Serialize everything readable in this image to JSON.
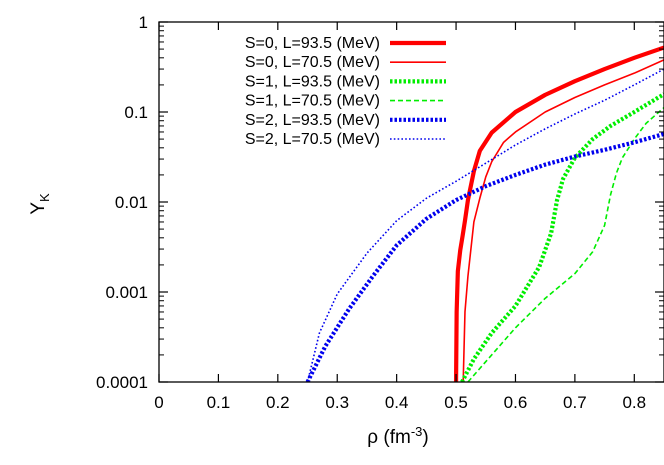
{
  "chart_data": {
    "type": "line",
    "title": "",
    "xlabel": "ρ (fm",
    "xlabel_sup": "-3",
    "xlabel_suffix": ")",
    "ylabel": "Y",
    "ylabel_sub": "K",
    "xlim": [
      0,
      0.85
    ],
    "ylim": [
      0.0001,
      1
    ],
    "yscale": "log",
    "grid": false,
    "legend_position": "top-left",
    "x_ticks": [
      0,
      0.1,
      0.2,
      0.3,
      0.4,
      0.5,
      0.6,
      0.7,
      0.8
    ],
    "x_tick_labels": [
      "0",
      "0.1",
      "0.2",
      "0.3",
      "0.4",
      "0.5",
      "0.6",
      "0.7",
      "0.8"
    ],
    "y_ticks": [
      0.0001,
      0.001,
      0.01,
      0.1,
      1
    ],
    "y_tick_labels": [
      "0.0001",
      "0.001",
      "0.01",
      "0.1",
      "1"
    ],
    "series": [
      {
        "name": "S=0, L=93.5 (MeV)",
        "color": "#ff0000",
        "style": "solid",
        "weight": "thick",
        "points": [
          [
            0.5,
            0.0001
          ],
          [
            0.501,
            0.0006
          ],
          [
            0.503,
            0.0017
          ],
          [
            0.507,
            0.0029
          ],
          [
            0.511,
            0.0042
          ],
          [
            0.515,
            0.0062
          ],
          [
            0.52,
            0.0105
          ],
          [
            0.53,
            0.022
          ],
          [
            0.54,
            0.037
          ],
          [
            0.56,
            0.059
          ],
          [
            0.6,
            0.1
          ],
          [
            0.65,
            0.155
          ],
          [
            0.7,
            0.22
          ],
          [
            0.75,
            0.3
          ],
          [
            0.8,
            0.4
          ],
          [
            0.85,
            0.52
          ]
        ]
      },
      {
        "name": "S=0, L=70.5 (MeV)",
        "color": "#ff0000",
        "style": "solid",
        "weight": "thin",
        "points": [
          [
            0.512,
            0.0001
          ],
          [
            0.515,
            0.0006
          ],
          [
            0.52,
            0.0015
          ],
          [
            0.525,
            0.003
          ],
          [
            0.53,
            0.006
          ],
          [
            0.54,
            0.011
          ],
          [
            0.55,
            0.019
          ],
          [
            0.56,
            0.028
          ],
          [
            0.58,
            0.046
          ],
          [
            0.6,
            0.06
          ],
          [
            0.65,
            0.1
          ],
          [
            0.7,
            0.145
          ],
          [
            0.75,
            0.2
          ],
          [
            0.8,
            0.27
          ],
          [
            0.85,
            0.38
          ]
        ]
      },
      {
        "name": "S=1, L=93.5 (MeV)",
        "color": "#00ee00",
        "style": "dotted",
        "weight": "thick",
        "points": [
          [
            0.51,
            0.0001
          ],
          [
            0.53,
            0.00018
          ],
          [
            0.56,
            0.00035
          ],
          [
            0.6,
            0.0007
          ],
          [
            0.64,
            0.0019
          ],
          [
            0.66,
            0.0045
          ],
          [
            0.67,
            0.0105
          ],
          [
            0.68,
            0.018
          ],
          [
            0.7,
            0.031
          ],
          [
            0.73,
            0.05
          ],
          [
            0.76,
            0.07
          ],
          [
            0.8,
            0.1
          ],
          [
            0.85,
            0.158
          ]
        ]
      },
      {
        "name": "S=1, L=70.5 (MeV)",
        "color": "#00ee00",
        "style": "dashed",
        "weight": "thin",
        "points": [
          [
            0.52,
            0.0001
          ],
          [
            0.56,
            0.0002
          ],
          [
            0.6,
            0.0004
          ],
          [
            0.65,
            0.00085
          ],
          [
            0.7,
            0.0016
          ],
          [
            0.73,
            0.0028
          ],
          [
            0.75,
            0.0055
          ],
          [
            0.76,
            0.012
          ],
          [
            0.77,
            0.021
          ],
          [
            0.78,
            0.031
          ],
          [
            0.8,
            0.05
          ],
          [
            0.82,
            0.075
          ],
          [
            0.85,
            0.112
          ]
        ]
      },
      {
        "name": "S=2, L=93.5 (MeV)",
        "color": "#0000ee",
        "style": "dotted",
        "weight": "thick",
        "points": [
          [
            0.25,
            0.0001
          ],
          [
            0.28,
            0.00025
          ],
          [
            0.32,
            0.00065
          ],
          [
            0.36,
            0.0015
          ],
          [
            0.4,
            0.0033
          ],
          [
            0.45,
            0.0065
          ],
          [
            0.5,
            0.0105
          ],
          [
            0.55,
            0.015
          ],
          [
            0.6,
            0.02
          ],
          [
            0.65,
            0.026
          ],
          [
            0.7,
            0.032
          ],
          [
            0.75,
            0.038
          ],
          [
            0.8,
            0.046
          ],
          [
            0.85,
            0.057
          ]
        ]
      },
      {
        "name": "S=2, L=70.5 (MeV)",
        "color": "#0000ee",
        "style": "dotted",
        "weight": "thin",
        "points": [
          [
            0.25,
            0.0001
          ],
          [
            0.27,
            0.00035
          ],
          [
            0.3,
            0.00095
          ],
          [
            0.35,
            0.0027
          ],
          [
            0.4,
            0.0062
          ],
          [
            0.45,
            0.011
          ],
          [
            0.5,
            0.017
          ],
          [
            0.55,
            0.027
          ],
          [
            0.6,
            0.043
          ],
          [
            0.65,
            0.065
          ],
          [
            0.7,
            0.095
          ],
          [
            0.75,
            0.135
          ],
          [
            0.8,
            0.2
          ],
          [
            0.85,
            0.3
          ]
        ]
      }
    ]
  }
}
